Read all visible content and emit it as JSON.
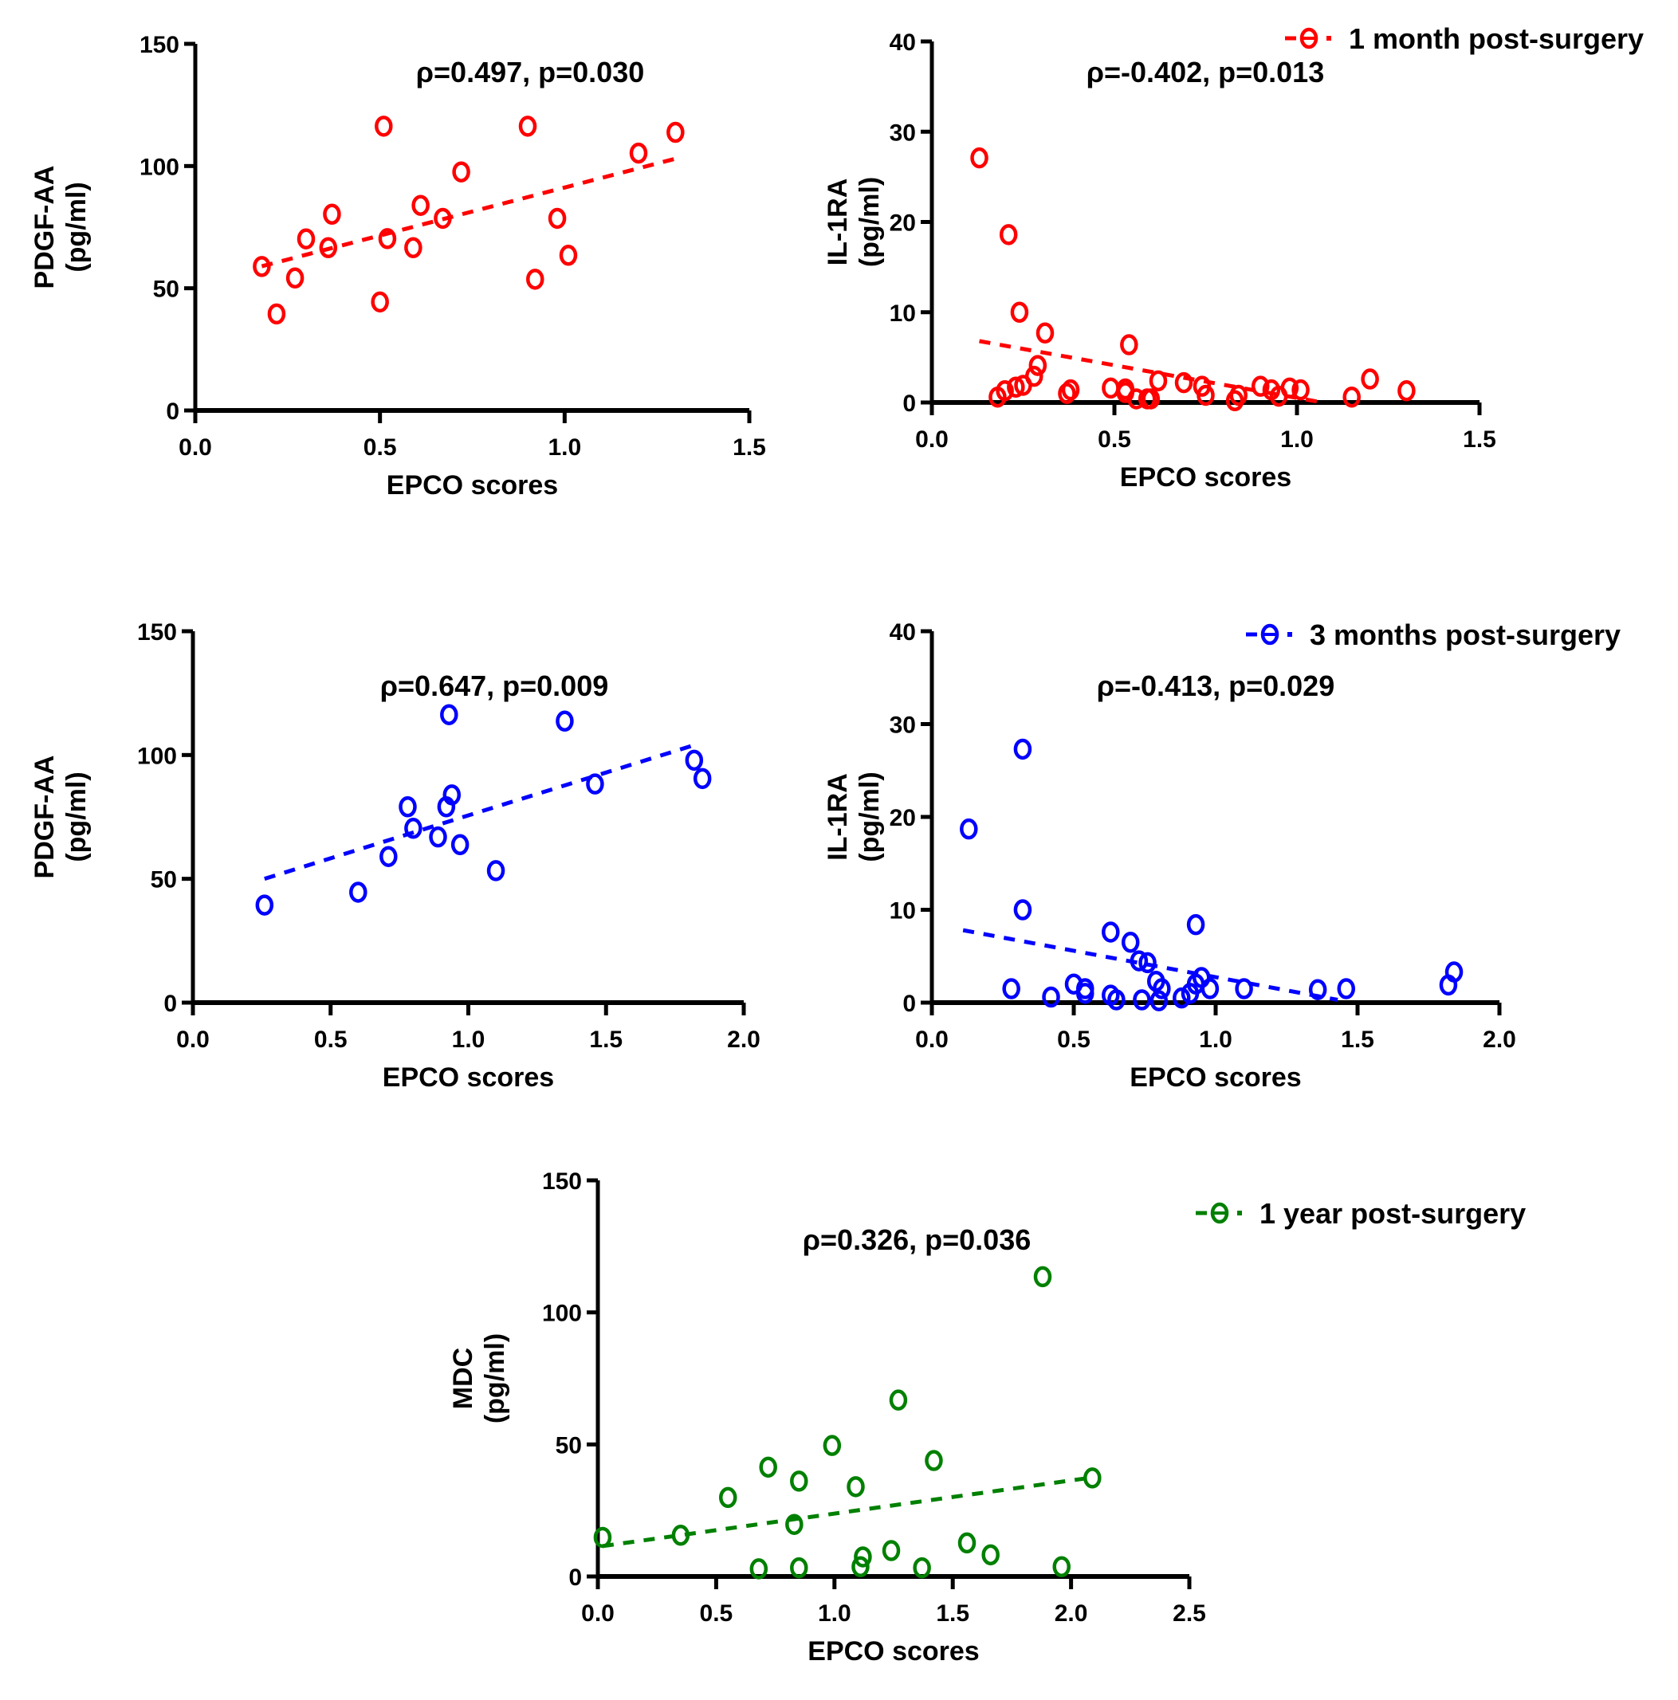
{
  "chart_data": [
    {
      "id": "p1",
      "type": "scatter",
      "xlabel": "EPCO scores",
      "ylabel": [
        "PDGF-AA",
        "(pg/ml)"
      ],
      "xlim": [
        0,
        1.5
      ],
      "ylim": [
        0,
        150
      ],
      "xticks": [
        "0.0",
        "0.5",
        "1.0",
        "1.5"
      ],
      "xtick_values": [
        0,
        0.5,
        1.0,
        1.5
      ],
      "yticks": [
        "0",
        "50",
        "100",
        "150"
      ],
      "ytick_values": [
        0,
        50,
        100,
        150
      ],
      "annotation": "ρ=0.497, p=0.030",
      "color": "#ff0000",
      "legend": null,
      "series": [
        {
          "name": "1 month post-surgery",
          "x": [
            0.18,
            0.22,
            0.27,
            0.3,
            0.36,
            0.37,
            0.5,
            0.51,
            0.52,
            0.59,
            0.61,
            0.67,
            0.72,
            0.9,
            0.92,
            0.98,
            1.01,
            1.2,
            1.3
          ],
          "y": [
            58.9,
            39.5,
            54.2,
            70.2,
            66.6,
            80.3,
            44.4,
            116.3,
            70.3,
            66.6,
            83.9,
            78.6,
            97.6,
            116.3,
            53.7,
            78.6,
            63.5,
            105.3,
            113.8
          ]
        }
      ],
      "trendline": {
        "x": [
          0.18,
          1.3
        ],
        "y": [
          59,
          103
        ]
      },
      "grid": false
    },
    {
      "id": "p2",
      "type": "scatter",
      "xlabel": "EPCO scores",
      "ylabel": [
        "IL-1RA",
        "(pg/ml)"
      ],
      "xlim": [
        0,
        1.5
      ],
      "ylim": [
        0,
        40
      ],
      "xticks": [
        "0.0",
        "0.5",
        "1.0",
        "1.5"
      ],
      "xtick_values": [
        0,
        0.5,
        1.0,
        1.5
      ],
      "yticks": [
        "0",
        "10",
        "20",
        "30",
        "40"
      ],
      "ytick_values": [
        0,
        10,
        20,
        30,
        40
      ],
      "annotation": "ρ=-0.402, p=0.013",
      "color": "#ff0000",
      "legend": {
        "label": "1 month post-surgery",
        "placement": "top-right"
      },
      "series": [
        {
          "name": "1 month post-surgery",
          "x": [
            0.13,
            0.21,
            0.24,
            0.31,
            0.54,
            0.29,
            0.28,
            0.25,
            0.23,
            0.2,
            0.18,
            0.38,
            0.37,
            0.49,
            0.53,
            0.53,
            0.56,
            0.59,
            0.6,
            0.62,
            0.69,
            0.74,
            0.75,
            0.83,
            0.84,
            0.9,
            0.93,
            0.95,
            0.98,
            1.01,
            1.15,
            1.2,
            1.3
          ],
          "y": [
            27.1,
            18.6,
            10.0,
            7.7,
            6.4,
            4.1,
            2.9,
            1.9,
            1.7,
            1.3,
            0.6,
            1.4,
            1.0,
            1.6,
            1.5,
            1.1,
            0.4,
            0.4,
            0.4,
            2.4,
            2.2,
            1.8,
            0.8,
            0.2,
            0.8,
            1.8,
            1.4,
            0.7,
            1.6,
            1.4,
            0.6,
            2.6,
            1.3
          ]
        }
      ],
      "trendline": {
        "x": [
          0.13,
          1.07
        ],
        "y": [
          6.8,
          0
        ]
      },
      "grid": false
    },
    {
      "id": "p3",
      "type": "scatter",
      "xlabel": "EPCO scores",
      "ylabel": [
        "PDGF-AA",
        "(pg/ml)"
      ],
      "xlim": [
        0,
        2.0
      ],
      "ylim": [
        0,
        150
      ],
      "xticks": [
        "0.0",
        "0.5",
        "1.0",
        "1.5",
        "2.0"
      ],
      "xtick_values": [
        0,
        0.5,
        1.0,
        1.5,
        2.0
      ],
      "yticks": [
        "0",
        "50",
        "100",
        "150"
      ],
      "ytick_values": [
        0,
        50,
        100,
        150
      ],
      "annotation": "ρ=0.647, p=0.009",
      "color": "#0000ff",
      "legend": null,
      "series": [
        {
          "name": "3 months post-surgery",
          "x": [
            0.26,
            0.6,
            0.71,
            0.78,
            0.8,
            0.89,
            0.92,
            0.93,
            0.94,
            0.97,
            1.1,
            1.35,
            1.46,
            1.82,
            1.85
          ],
          "y": [
            39.4,
            44.6,
            59.0,
            79.1,
            70.4,
            66.9,
            79.1,
            116.3,
            83.9,
            63.8,
            53.3,
            113.7,
            88.3,
            97.9,
            90.5
          ]
        }
      ],
      "trendline": {
        "x": [
          0.26,
          1.82
        ],
        "y": [
          50,
          104
        ]
      },
      "grid": false
    },
    {
      "id": "p4",
      "type": "scatter",
      "xlabel": "EPCO scores",
      "ylabel": [
        "IL-1RA",
        "(pg/ml)"
      ],
      "xlim": [
        0,
        2.0
      ],
      "ylim": [
        0,
        40
      ],
      "xticks": [
        "0.0",
        "0.5",
        "1.0",
        "1.5",
        "2.0"
      ],
      "xtick_values": [
        0,
        0.5,
        1.0,
        1.5,
        2.0
      ],
      "yticks": [
        "0",
        "10",
        "20",
        "30",
        "40"
      ],
      "ytick_values": [
        0,
        10,
        20,
        30,
        40
      ],
      "annotation": "ρ=-0.413, p=0.029",
      "color": "#0000ff",
      "legend": {
        "label": "3 months post-surgery",
        "placement": "top-right"
      },
      "series": [
        {
          "name": "3 months post-surgery",
          "x": [
            0.13,
            0.32,
            0.32,
            0.28,
            0.42,
            0.5,
            0.54,
            0.54,
            0.63,
            0.63,
            0.65,
            0.7,
            0.73,
            0.76,
            0.74,
            0.79,
            0.81,
            0.8,
            0.88,
            0.91,
            0.93,
            0.95,
            0.93,
            0.98,
            1.1,
            1.36,
            1.46,
            1.82,
            1.84
          ],
          "y": [
            18.7,
            27.3,
            10.0,
            1.5,
            0.6,
            2.0,
            1.5,
            1.0,
            7.6,
            0.8,
            0.3,
            6.5,
            4.5,
            4.3,
            0.3,
            2.3,
            1.5,
            0.2,
            0.5,
            1.0,
            2.0,
            2.7,
            8.4,
            1.5,
            1.5,
            1.4,
            1.5,
            1.9,
            3.3
          ]
        }
      ],
      "trendline": {
        "x": [
          0.11,
          1.43
        ],
        "y": [
          7.8,
          0.3
        ]
      },
      "grid": false
    },
    {
      "id": "p5",
      "type": "scatter",
      "xlabel": "EPCO scores",
      "ylabel": [
        "MDC",
        "(pg/ml)"
      ],
      "xlim": [
        0,
        2.5
      ],
      "ylim": [
        0,
        150
      ],
      "xticks": [
        "0.0",
        "0.5",
        "1.0",
        "1.5",
        "2.0",
        "2.5"
      ],
      "xtick_values": [
        0,
        0.5,
        1.0,
        1.5,
        2.0,
        2.5
      ],
      "yticks": [
        "0",
        "50",
        "100",
        "150"
      ],
      "ytick_values": [
        0,
        50,
        100,
        150
      ],
      "annotation": "ρ=0.326, p=0.036",
      "color": "#008000",
      "legend": {
        "label": "1 year post-surgery",
        "placement": "top-right"
      },
      "series": [
        {
          "name": "1 year post-surgery",
          "x": [
            0.02,
            0.35,
            0.55,
            0.72,
            0.85,
            0.83,
            0.68,
            0.85,
            0.99,
            1.09,
            1.12,
            1.11,
            1.24,
            1.27,
            1.37,
            1.42,
            1.56,
            1.66,
            1.88,
            1.96,
            2.09
          ],
          "y": [
            14.8,
            15.6,
            29.9,
            41.4,
            36.1,
            19.7,
            2.9,
            3.3,
            49.6,
            34.0,
            7.4,
            3.7,
            9.8,
            66.8,
            3.3,
            43.9,
            12.7,
            8.2,
            113.5,
            3.7,
            37.3
          ]
        }
      ],
      "trendline": {
        "x": [
          0.02,
          2.09
        ],
        "y": [
          11.5,
          37.5
        ]
      },
      "grid": false
    }
  ]
}
